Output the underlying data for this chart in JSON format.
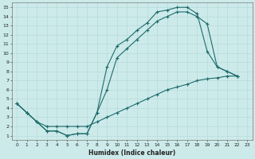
{
  "xlabel": "Humidex (Indice chaleur)",
  "xlim": [
    -0.5,
    23.5
  ],
  "ylim": [
    0.5,
    15.5
  ],
  "xticks": [
    0,
    1,
    2,
    3,
    4,
    5,
    6,
    7,
    8,
    9,
    10,
    11,
    12,
    13,
    14,
    15,
    16,
    17,
    18,
    19,
    20,
    21,
    22,
    23
  ],
  "yticks": [
    1,
    2,
    3,
    4,
    5,
    6,
    7,
    8,
    9,
    10,
    11,
    12,
    13,
    14,
    15
  ],
  "bg_color": "#cdeaea",
  "line_color": "#1e6b6b",
  "grid_color": "#b0d8d8",
  "top_x": [
    0,
    1,
    2,
    3,
    4,
    5,
    6,
    7,
    8,
    9,
    10,
    11,
    12,
    13,
    14,
    15,
    16,
    17,
    18,
    19,
    20,
    21,
    22
  ],
  "top_y": [
    4.5,
    3.5,
    2.5,
    1.5,
    1.5,
    1.0,
    1.2,
    1.2,
    3.5,
    8.5,
    10.8,
    11.5,
    12.5,
    13.3,
    14.5,
    14.7,
    15.0,
    15.0,
    14.3,
    10.2,
    8.5,
    8.0,
    7.5
  ],
  "mid_x": [
    0,
    1,
    2,
    3,
    4,
    5,
    6,
    7,
    8,
    9,
    10,
    11,
    12,
    13,
    14,
    15,
    16,
    17,
    18,
    19,
    20,
    21,
    22
  ],
  "mid_y": [
    4.5,
    3.5,
    2.5,
    1.5,
    1.5,
    1.0,
    1.2,
    1.2,
    3.5,
    6.0,
    9.5,
    10.5,
    11.5,
    12.5,
    13.5,
    14.0,
    14.5,
    14.5,
    14.0,
    13.2,
    8.5,
    8.0,
    7.5
  ],
  "bot_x": [
    0,
    1,
    2,
    3,
    4,
    5,
    6,
    7,
    8,
    9,
    10,
    11,
    12,
    13,
    14,
    15,
    16,
    17,
    18,
    19,
    20,
    21,
    22
  ],
  "bot_y": [
    4.5,
    3.5,
    2.5,
    2.0,
    2.0,
    2.0,
    2.0,
    2.0,
    2.5,
    3.0,
    3.5,
    4.0,
    4.5,
    5.0,
    5.5,
    6.0,
    6.3,
    6.6,
    7.0,
    7.2,
    7.3,
    7.5,
    7.5
  ]
}
